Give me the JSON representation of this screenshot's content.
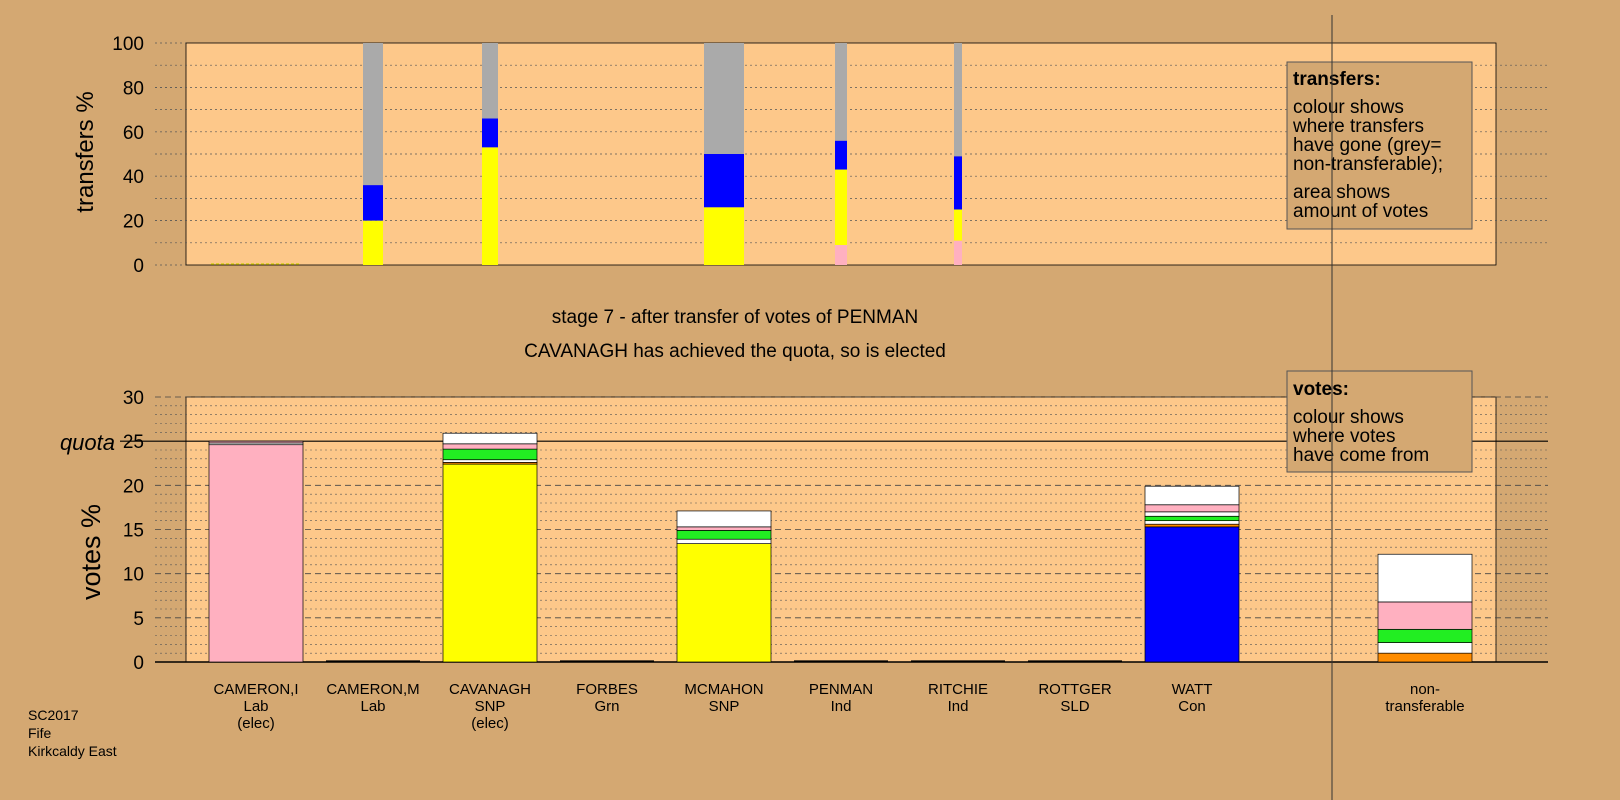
{
  "colors": {
    "background": "#d4a872",
    "plot_bg": "#fdc88a",
    "lab": "#ffb0c0",
    "snp": "#ffff00",
    "con": "#0000ff",
    "grn": "#22ee22",
    "ind": "#ffffff",
    "sld": "#ff8c00",
    "nontransferable": "#aaaaaa"
  },
  "titles": {
    "stage": "stage 7 - after transfer of votes of PENMAN",
    "elected": "CAVANAGH has achieved the quota, so is elected",
    "quota_label": "quota"
  },
  "legend_transfers": {
    "title": "transfers:",
    "lines": [
      "colour shows",
      "where transfers",
      "have gone (grey=",
      "non-transferable);",
      "area shows",
      "amount of votes"
    ]
  },
  "legend_votes": {
    "title": "votes:",
    "lines": [
      "colour shows",
      "where votes",
      "have come from"
    ]
  },
  "footer": [
    "SC2017",
    "Fife",
    "Kirkcaldy East"
  ],
  "chart_data": [
    {
      "type": "bar",
      "name": "transfers",
      "ylabel": "transfers %",
      "ylim": [
        0,
        100
      ],
      "yticks": [
        0,
        20,
        40,
        60,
        80,
        100
      ],
      "grid": true,
      "categories": [
        "CAMERON,I",
        "CAMERON,M",
        "CAVANAGH",
        "FORBES",
        "MCMAHON",
        "PENMAN",
        "RITCHIE",
        "ROTTGER",
        "WATT",
        "non-transferable"
      ],
      "bars": [
        {
          "category": "CAMERON,I",
          "segments": []
        },
        {
          "category": "CAMERON,M",
          "segments": [
            {
              "party": "snp",
              "value": 20
            },
            {
              "party": "con",
              "value": 16
            },
            {
              "party": "nontransferable",
              "value": 64
            }
          ]
        },
        {
          "category": "CAVANAGH",
          "segments": [
            {
              "party": "snp",
              "value": 53
            },
            {
              "party": "con",
              "value": 13
            },
            {
              "party": "nontransferable",
              "value": 34
            }
          ]
        },
        {
          "category": "MCMAHON",
          "segments": [
            {
              "party": "snp",
              "value": 26
            },
            {
              "party": "con",
              "value": 24
            },
            {
              "party": "nontransferable",
              "value": 50
            }
          ]
        },
        {
          "category": "PENMAN",
          "segments": [
            {
              "party": "lab",
              "value": 9
            },
            {
              "party": "snp",
              "value": 34
            },
            {
              "party": "con",
              "value": 13
            },
            {
              "party": "nontransferable",
              "value": 44
            }
          ]
        },
        {
          "category": "RITCHIE",
          "segments": [
            {
              "party": "lab",
              "value": 11
            },
            {
              "party": "snp",
              "value": 14
            },
            {
              "party": "con",
              "value": 24
            },
            {
              "party": "nontransferable",
              "value": 51
            }
          ]
        }
      ]
    },
    {
      "type": "bar",
      "name": "votes",
      "ylabel": "votes %",
      "ylim": [
        0,
        30
      ],
      "yticks": [
        0,
        5,
        10,
        15,
        20,
        25,
        30
      ],
      "quota": 25,
      "grid": true,
      "categories": [
        {
          "name": "CAMERON,I",
          "party": "Lab",
          "status": "(elec)"
        },
        {
          "name": "CAMERON,M",
          "party": "Lab",
          "status": ""
        },
        {
          "name": "CAVANAGH",
          "party": "SNP",
          "status": "(elec)"
        },
        {
          "name": "FORBES",
          "party": "Grn",
          "status": ""
        },
        {
          "name": "MCMAHON",
          "party": "SNP",
          "status": ""
        },
        {
          "name": "PENMAN",
          "party": "Ind",
          "status": ""
        },
        {
          "name": "RITCHIE",
          "party": "Ind",
          "status": ""
        },
        {
          "name": "ROTTGER",
          "party": "SLD",
          "status": ""
        },
        {
          "name": "WATT",
          "party": "Con",
          "status": ""
        },
        {
          "name": "non-",
          "party": "transferable",
          "status": ""
        }
      ],
      "bars": [
        {
          "category": "CAMERON,I",
          "segments": [
            {
              "party": "lab",
              "value": 24.6
            },
            {
              "party": "ind",
              "value": 0.2
            },
            {
              "party": "lab",
              "value": 0.2
            }
          ]
        },
        {
          "category": "CAMERON,M",
          "segments": []
        },
        {
          "category": "CAVANAGH",
          "segments": [
            {
              "party": "snp",
              "value": 22.4
            },
            {
              "party": "sld",
              "value": 0.2
            },
            {
              "party": "ind",
              "value": 0.3
            },
            {
              "party": "grn",
              "value": 1.2
            },
            {
              "party": "lab",
              "value": 0.6
            },
            {
              "party": "ind",
              "value": 1.2
            }
          ]
        },
        {
          "category": "FORBES",
          "segments": []
        },
        {
          "category": "MCMAHON",
          "segments": [
            {
              "party": "snp",
              "value": 13.4
            },
            {
              "party": "ind",
              "value": 0.5
            },
            {
              "party": "grn",
              "value": 1.0
            },
            {
              "party": "lab",
              "value": 0.4
            },
            {
              "party": "ind",
              "value": 1.8
            }
          ]
        },
        {
          "category": "PENMAN",
          "segments": []
        },
        {
          "category": "RITCHIE",
          "segments": []
        },
        {
          "category": "ROTTGER",
          "segments": []
        },
        {
          "category": "WATT",
          "segments": [
            {
              "party": "con",
              "value": 15.3
            },
            {
              "party": "sld",
              "value": 0.3
            },
            {
              "party": "ind",
              "value": 0.4
            },
            {
              "party": "grn",
              "value": 0.5
            },
            {
              "party": "ind",
              "value": 0.5
            },
            {
              "party": "lab",
              "value": 0.8
            },
            {
              "party": "ind",
              "value": 2.1
            }
          ]
        },
        {
          "category": "non-transferable",
          "segments": [
            {
              "party": "sld",
              "value": 1.0
            },
            {
              "party": "ind",
              "value": 1.2
            },
            {
              "party": "grn",
              "value": 1.5
            },
            {
              "party": "lab",
              "value": 3.1
            },
            {
              "party": "ind",
              "value": 5.4
            }
          ]
        }
      ]
    }
  ]
}
